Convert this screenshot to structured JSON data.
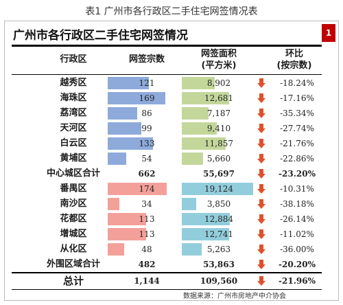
{
  "caption": "表1 广州市各行政区二手住宅网签情况表",
  "title": "广州市各行政区二手住宅网签情况",
  "badge": "1",
  "headers": {
    "district": "行政区",
    "count": "网签宗数",
    "area_line1": "网签面积",
    "area_line2": "(平方米)",
    "ratio_line1": "环比",
    "ratio_line2": "(按宗数)"
  },
  "colors": {
    "central_count_bar": "#8eaadb",
    "central_area_bar": "#c4d79b",
    "outer_count_bar": "#f4a09a",
    "outer_area_bar": "#92cddc",
    "down_arrow": "#e0502a"
  },
  "rows": [
    {
      "name": "越秀区",
      "count": "121",
      "area": "8,902",
      "ratio": "-18.24%",
      "count_value": 121,
      "area_value": 8902,
      "group": "central"
    },
    {
      "name": "海珠区",
      "count": "169",
      "area": "12,681",
      "ratio": "-17.16%",
      "count_value": 169,
      "area_value": 12681,
      "group": "central"
    },
    {
      "name": "荔湾区",
      "count": "86",
      "area": "7,187",
      "ratio": "-35.34%",
      "count_value": 86,
      "area_value": 7187,
      "group": "central"
    },
    {
      "name": "天河区",
      "count": "99",
      "area": "9,410",
      "ratio": "-27.74%",
      "count_value": 99,
      "area_value": 9410,
      "group": "central"
    },
    {
      "name": "白云区",
      "count": "133",
      "area": "11,857",
      "ratio": "-21.76%",
      "count_value": 133,
      "area_value": 11857,
      "group": "central"
    },
    {
      "name": "黄埔区",
      "count": "54",
      "area": "5,660",
      "ratio": "-22.86%",
      "count_value": 54,
      "area_value": 5660,
      "group": "central"
    },
    {
      "name": "中心城区合计",
      "count": "662",
      "area": "55,697",
      "ratio": "-23.20%",
      "total": true
    },
    {
      "name": "番禺区",
      "count": "174",
      "area": "19,124",
      "ratio": "-10.31%",
      "count_value": 174,
      "area_value": 19124,
      "group": "outer"
    },
    {
      "name": "南沙区",
      "count": "34",
      "area": "3,850",
      "ratio": "-38.18%",
      "count_value": 34,
      "area_value": 3850,
      "group": "outer"
    },
    {
      "name": "花都区",
      "count": "113",
      "area": "12,884",
      "ratio": "-26.14%",
      "count_value": 113,
      "area_value": 12884,
      "group": "outer"
    },
    {
      "name": "增城区",
      "count": "113",
      "area": "12,741",
      "ratio": "-11.02%",
      "count_value": 113,
      "area_value": 12741,
      "group": "outer"
    },
    {
      "name": "从化区",
      "count": "48",
      "area": "5,263",
      "ratio": "-36.00%",
      "count_value": 48,
      "area_value": 5263,
      "group": "outer"
    },
    {
      "name": "外围区域合计",
      "count": "482",
      "area": "53,863",
      "ratio": "-20.20%",
      "total": true
    }
  ],
  "grand_total": {
    "name": "总计",
    "count": "1,144",
    "area": "109,560",
    "ratio": "-21.96%"
  },
  "source": "数据来源：广州市房地产中介协会",
  "bar_scale": {
    "count_max": 174,
    "area_max": 19124
  }
}
